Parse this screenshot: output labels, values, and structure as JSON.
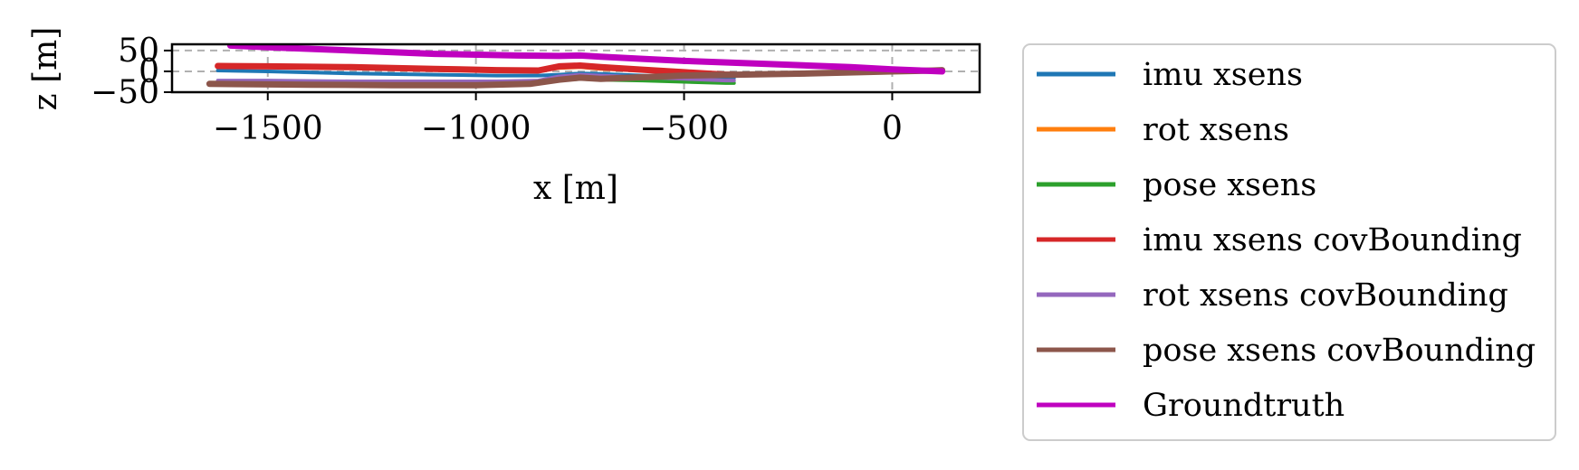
{
  "chart_data": {
    "type": "line",
    "title": "",
    "xlabel": "x [m]",
    "ylabel": "z [m]",
    "xlim": [
      -1730,
      210
    ],
    "ylim": [
      -50,
      65
    ],
    "grid": true,
    "legend_placement": "right, outside",
    "x_ticks": [
      {
        "value": -1500,
        "label": "−1500"
      },
      {
        "value": -1000,
        "label": "−1000"
      },
      {
        "value": -500,
        "label": "−500"
      },
      {
        "value": 0,
        "label": "0"
      }
    ],
    "y_ticks": [
      {
        "value": 50,
        "label": "50"
      },
      {
        "value": 0,
        "label": "0"
      },
      {
        "value": -50,
        "label": "−50"
      }
    ],
    "series": [
      {
        "name": "imu xsens",
        "color": "#1f77b4",
        "x": [
          -1620,
          -1500,
          -1300,
          -1100,
          -950,
          -850,
          -800,
          -750,
          -700,
          -600,
          -500,
          -400,
          -380
        ],
        "y": [
          2,
          0,
          -5,
          -8,
          -10,
          -10,
          -8,
          -5,
          -6,
          -10,
          -14,
          -16,
          -16
        ]
      },
      {
        "name": "rot xsens",
        "color": "#ff7f0e",
        "x": [
          -1620,
          -1500,
          -1300,
          -1100,
          -950,
          -850,
          -800,
          -750,
          -700,
          -600,
          -500,
          -400,
          -380
        ],
        "y": [
          10,
          10,
          8,
          5,
          2,
          1,
          8,
          10,
          6,
          2,
          -4,
          -10,
          -10
        ]
      },
      {
        "name": "pose xsens",
        "color": "#2ca02c",
        "x": [
          -1640,
          -1500,
          -1300,
          -1100,
          -950,
          -870,
          -800,
          -750,
          -700,
          -600,
          -500,
          -400,
          -380
        ],
        "y": [
          -30,
          -30,
          -32,
          -33,
          -33,
          -31,
          -22,
          -18,
          -20,
          -22,
          -25,
          -28,
          -28
        ]
      },
      {
        "name": "imu xsens covBounding",
        "color": "#d62728",
        "x": [
          -1620,
          -1500,
          -1300,
          -1100,
          -950,
          -850,
          -800,
          -750,
          -700,
          -600,
          -500,
          -400,
          -380
        ],
        "y": [
          13,
          12,
          10,
          6,
          3,
          2,
          12,
          14,
          10,
          4,
          -2,
          -8,
          -8
        ]
      },
      {
        "name": "rot xsens covBounding",
        "color": "#9467bd",
        "x": [
          -1620,
          -1500,
          -1300,
          -1100,
          -950,
          -850,
          -800,
          -750,
          -700,
          -600,
          -500,
          -400,
          -380
        ],
        "y": [
          -22,
          -22,
          -24,
          -24,
          -24,
          -22,
          -12,
          -8,
          -10,
          -14,
          -18,
          -22,
          -22
        ]
      },
      {
        "name": "pose xsens covBounding",
        "color": "#8c564b",
        "x": [
          -1640,
          -1400,
          -1200,
          -1000,
          -870,
          -800,
          -750,
          -700,
          -500,
          -200,
          0,
          100,
          120
        ],
        "y": [
          -30,
          -32,
          -33,
          -33,
          -30,
          -20,
          -15,
          -18,
          -10,
          -5,
          0,
          2,
          3
        ]
      },
      {
        "name": "Groundtruth",
        "color": "#bf00bf",
        "x": [
          -1590,
          -1500,
          -1300,
          -1100,
          -900,
          -800,
          -750,
          -700,
          -600,
          -500,
          -300,
          -100,
          0,
          120
        ],
        "y": [
          62,
          58,
          50,
          42,
          38,
          37,
          38,
          35,
          30,
          25,
          18,
          10,
          5,
          0
        ]
      }
    ]
  }
}
